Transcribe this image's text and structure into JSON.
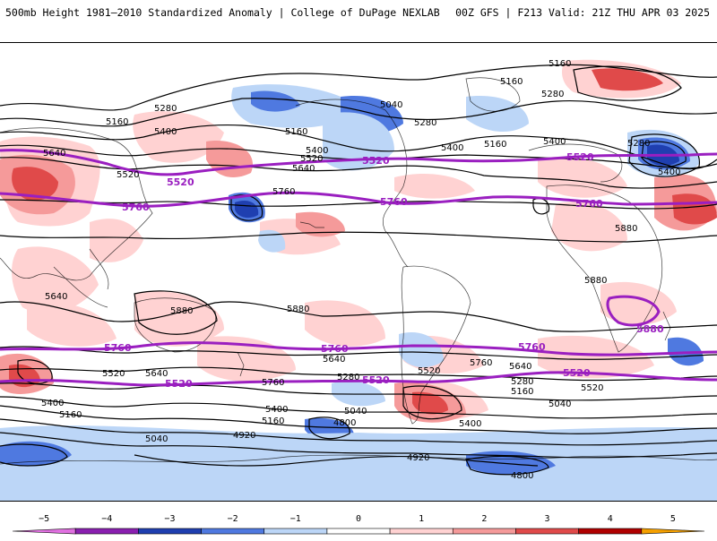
{
  "header": {
    "title_left": "500mb Height 1981–2010 Standardized Anomaly | College of DuPage NEXLAB",
    "title_right": "00Z GFS | F213 Valid: 21Z THU APR 03 2025"
  },
  "colorbar": {
    "ticks": [
      "−5",
      "−4",
      "−3",
      "−2",
      "−1",
      "0",
      "1",
      "2",
      "3",
      "4",
      "5"
    ],
    "colors": [
      "#e070e0",
      "#8a1fb0",
      "#1f3fb0",
      "#4f79e0",
      "#bcd6f7",
      "#ffffff",
      "#ffd2d2",
      "#f59a9a",
      "#e04a4a",
      "#b00000",
      "#f5a000"
    ]
  },
  "contours": {
    "thin_labels": [
      "5160",
      "5160",
      "5280",
      "5160",
      "5280",
      "5400",
      "5040",
      "5280",
      "5160",
      "5400",
      "5520",
      "5400",
      "5640",
      "5280",
      "5160",
      "5400",
      "5400",
      "5520",
      "5640",
      "5760",
      "5880",
      "5880",
      "5880",
      "5880",
      "5640",
      "5520",
      "5400",
      "5160",
      "5040",
      "4920",
      "5520",
      "5640",
      "5760",
      "5640",
      "5280",
      "5400",
      "5160",
      "5040",
      "4800",
      "4920",
      "5160",
      "5040",
      "5280",
      "5400",
      "5520",
      "5640",
      "5760",
      "4800"
    ],
    "bold_labels": [
      "5520",
      "5760",
      "5520",
      "5760",
      "5520",
      "5760",
      "5760",
      "5520",
      "5760",
      "5520",
      "5520",
      "5760",
      "5880"
    ],
    "bold_color": "#9a1fc0"
  },
  "anomaly_colors": {
    "positive_light": "#ffd2d2",
    "positive_mid": "#f59a9a",
    "positive_strong": "#e04a4a",
    "negative_light": "#bcd6f7",
    "negative_mid": "#4f79e0",
    "negative_strong": "#1f3fb0"
  }
}
